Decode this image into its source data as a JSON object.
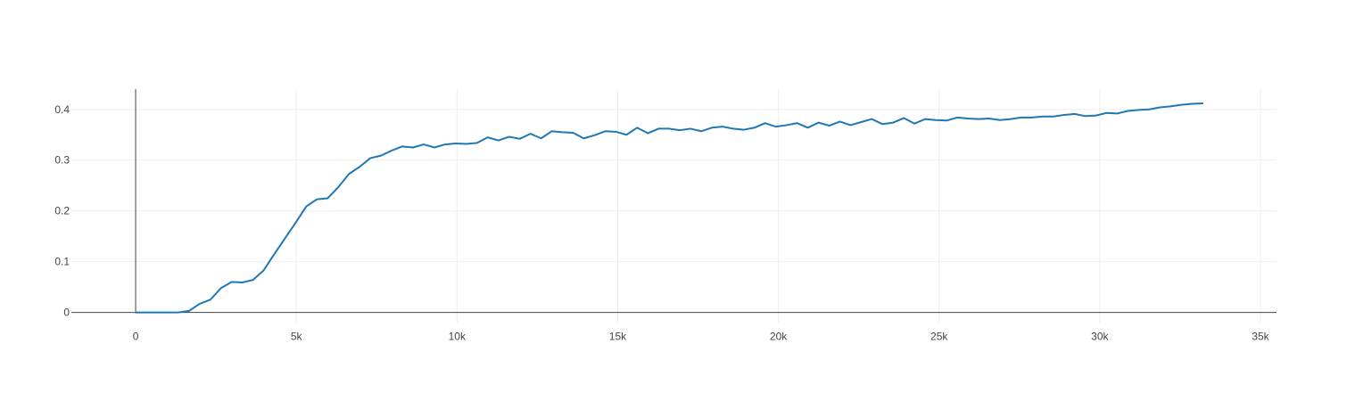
{
  "chart_data": {
    "type": "line",
    "title": "",
    "xlabel": "",
    "ylabel": "",
    "xlim": [
      -2000,
      35500
    ],
    "ylim": [
      -0.02,
      0.44
    ],
    "grid": true,
    "x_ticks": [
      0,
      5000,
      10000,
      15000,
      20000,
      25000,
      30000,
      35000
    ],
    "x_tick_labels": [
      "0",
      "5k",
      "10k",
      "15k",
      "20k",
      "25k",
      "30k",
      "35k"
    ],
    "y_ticks": [
      0,
      0.1,
      0.2,
      0.3,
      0.4
    ],
    "y_tick_labels": [
      "0",
      "0.1",
      "0.2",
      "0.3",
      "0.4"
    ],
    "colors": {
      "line": "#1f77b4",
      "grid": "#eeeeee",
      "axis": "#444444"
    },
    "series": [
      {
        "x": [
          0,
          332,
          664,
          996,
          1328,
          1660,
          1992,
          2324,
          2656,
          2988,
          3320,
          3652,
          3984,
          4316,
          4648,
          4980,
          5312,
          5644,
          5976,
          6308,
          6640,
          6972,
          7304,
          7636,
          7968,
          8300,
          8632,
          8964,
          9296,
          9628,
          9960,
          10292,
          10624,
          10956,
          11288,
          11620,
          11952,
          12284,
          12616,
          12948,
          13280,
          13612,
          13944,
          14276,
          14608,
          14940,
          15272,
          15604,
          15936,
          16268,
          16600,
          16932,
          17264,
          17596,
          17928,
          18260,
          18592,
          18924,
          19256,
          19588,
          19920,
          20252,
          20584,
          20916,
          21248,
          21580,
          21912,
          22244,
          22576,
          22908,
          23240,
          23572,
          23904,
          24236,
          24568,
          24900,
          25232,
          25564,
          25896,
          26228,
          26560,
          26892,
          27224,
          27556,
          27888,
          28220,
          28552,
          28884,
          29216,
          29548,
          29880,
          30212,
          30544,
          30876,
          31208,
          31540,
          31872,
          32204,
          32536,
          32868,
          33200
        ],
        "values": [
          0.0,
          0.0,
          0.0,
          0.0,
          0.0,
          0.003,
          0.017,
          0.025,
          0.048,
          0.06,
          0.059,
          0.064,
          0.083,
          0.115,
          0.146,
          0.177,
          0.209,
          0.223,
          0.225,
          0.247,
          0.273,
          0.287,
          0.304,
          0.309,
          0.319,
          0.327,
          0.325,
          0.331,
          0.325,
          0.331,
          0.333,
          0.332,
          0.334,
          0.345,
          0.339,
          0.346,
          0.342,
          0.352,
          0.343,
          0.357,
          0.355,
          0.354,
          0.343,
          0.349,
          0.357,
          0.356,
          0.35,
          0.364,
          0.353,
          0.362,
          0.362,
          0.359,
          0.362,
          0.357,
          0.364,
          0.366,
          0.362,
          0.36,
          0.364,
          0.373,
          0.366,
          0.369,
          0.373,
          0.364,
          0.374,
          0.368,
          0.376,
          0.369,
          0.375,
          0.381,
          0.371,
          0.374,
          0.383,
          0.372,
          0.381,
          0.379,
          0.378,
          0.384,
          0.382,
          0.381,
          0.382,
          0.379,
          0.381,
          0.384,
          0.384,
          0.386,
          0.386,
          0.389,
          0.391,
          0.387,
          0.388,
          0.393,
          0.392,
          0.397,
          0.399,
          0.4,
          0.404,
          0.406,
          0.409,
          0.411,
          0.412
        ]
      }
    ]
  }
}
